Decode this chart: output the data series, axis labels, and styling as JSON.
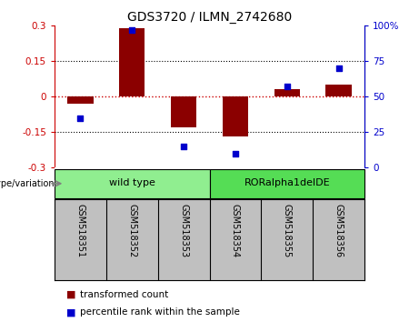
{
  "title": "GDS3720 / ILMN_2742680",
  "samples": [
    "GSM518351",
    "GSM518352",
    "GSM518353",
    "GSM518354",
    "GSM518355",
    "GSM518356"
  ],
  "red_bars": [
    -0.03,
    0.29,
    -0.13,
    -0.17,
    0.03,
    0.05
  ],
  "blue_squares_pct": [
    35,
    97,
    15,
    10,
    57,
    70
  ],
  "ylim_left": [
    -0.3,
    0.3
  ],
  "ylim_right": [
    0,
    100
  ],
  "yticks_left": [
    -0.3,
    -0.15,
    0,
    0.15,
    0.3
  ],
  "yticks_right": [
    0,
    25,
    50,
    75,
    100
  ],
  "ytick_labels_left": [
    "-0.3",
    "-0.15",
    "0",
    "0.15",
    "0.3"
  ],
  "ytick_labels_right": [
    "0",
    "25",
    "50",
    "75",
    "100%"
  ],
  "dotted_hlines": [
    -0.15,
    0.15
  ],
  "bar_color": "#8B0000",
  "square_color": "#0000CC",
  "bar_width": 0.5,
  "groups": [
    {
      "label": "wild type",
      "indices": [
        0,
        1,
        2
      ],
      "color": "#90EE90"
    },
    {
      "label": "RORalpha1delDE",
      "indices": [
        3,
        4,
        5
      ],
      "color": "#55DD55"
    }
  ],
  "genotype_label": "genotype/variation",
  "legend_red": "transformed count",
  "legend_blue": "percentile rank within the sample",
  "tick_label_color_left": "#CC0000",
  "tick_label_color_right": "#0000CC",
  "xlabel_bg_color": "#C0C0C0",
  "bg_color": "#FFFFFF"
}
